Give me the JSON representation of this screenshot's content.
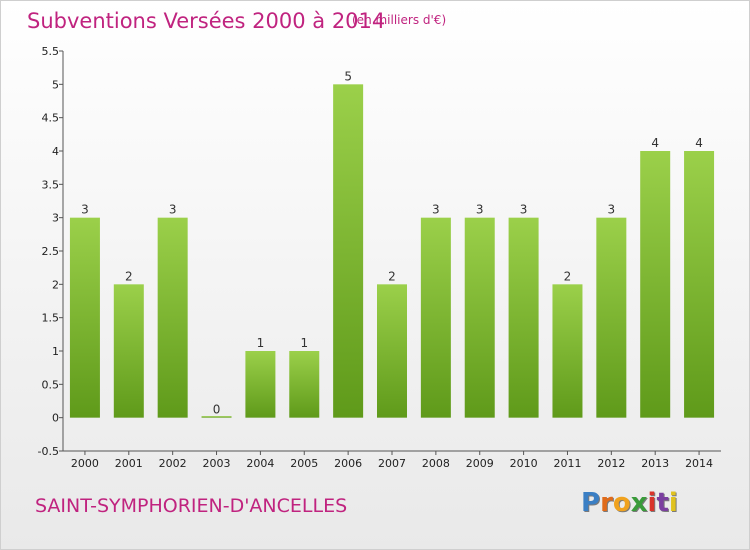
{
  "header": {
    "title": "Subventions Versées 2000 à 2014",
    "subtitle": "(en milliers d'€)"
  },
  "footer": {
    "commune": "SAINT-SYMPHORIEN-D'ANCELLES",
    "logo": "Proxiti"
  },
  "colors": {
    "title": "#c0237f",
    "bar_top": "#9bd04a",
    "bar_bottom": "#5f9a1a"
  },
  "chart_data": {
    "type": "bar",
    "title": "Subventions Versées 2000 à 2014",
    "categories": [
      "2000",
      "2001",
      "2002",
      "2003",
      "2004",
      "2005",
      "2006",
      "2007",
      "2008",
      "2009",
      "2010",
      "2011",
      "2012",
      "2013",
      "2014"
    ],
    "values": [
      3,
      2,
      3,
      0,
      1,
      1,
      5,
      2,
      3,
      3,
      3,
      2,
      3,
      4,
      4
    ],
    "data_labels": [
      "3",
      "2",
      "3",
      "0",
      "1",
      "1",
      "5",
      "2",
      "3",
      "3",
      "3",
      "2",
      "3",
      "4",
      "4"
    ],
    "y_ticks": [
      "-0.5",
      "0",
      "0.5",
      "1",
      "1.5",
      "2",
      "2.5",
      "3",
      "3.5",
      "4",
      "4.5",
      "5",
      "5.5"
    ],
    "ylim": [
      -0.5,
      5.5
    ],
    "grid": false,
    "legend": "none"
  }
}
